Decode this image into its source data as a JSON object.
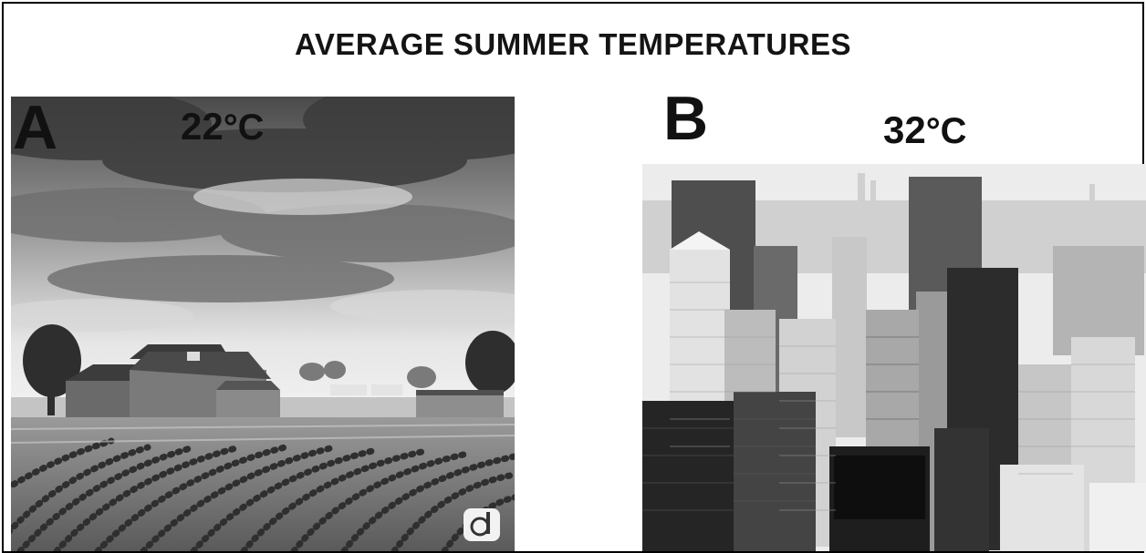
{
  "title": "AVERAGE SUMMER TEMPERATURES",
  "panels": [
    {
      "label": "A",
      "temperature": "22",
      "unit": "°C",
      "scene": "rural farmland with barn and crop rows"
    },
    {
      "label": "B",
      "temperature": "32",
      "unit": "°C",
      "scene": "dense city skyline of high-rise buildings"
    }
  ],
  "colors": {
    "border": "#000000",
    "text": "#111111",
    "background": "#ffffff"
  },
  "icons": {
    "watermark": "circled-d-logo"
  }
}
